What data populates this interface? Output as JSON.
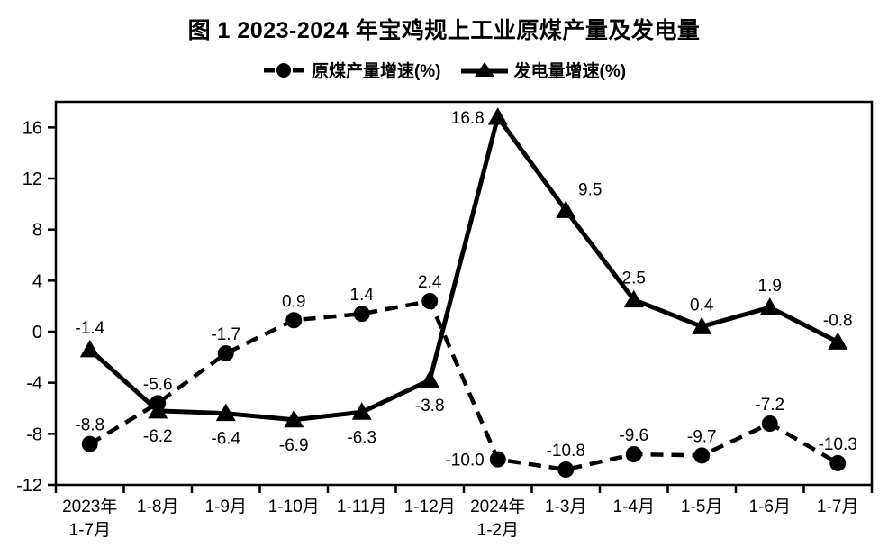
{
  "title": "图 1  2023-2024 年宝鸡规上工业原煤产量及发电量",
  "legend": {
    "items": [
      {
        "label": "原煤产量增速(%)"
      },
      {
        "label": "发电量增速(%)"
      }
    ]
  },
  "chart_data": {
    "type": "line",
    "title": "图 1  2023-2024 年宝鸡规上工业原煤产量及发电量",
    "categories": [
      "2023年\n1-7月",
      "1-8月",
      "1-9月",
      "1-10月",
      "1-11月",
      "1-12月",
      "2024年\n1-2月",
      "1-3月",
      "1-4月",
      "1-5月",
      "1-6月",
      "1-7月"
    ],
    "series": [
      {
        "name": "原煤产量增速(%)",
        "marker": "circle",
        "line_style": "dashed",
        "values": [
          -8.8,
          -5.6,
          -1.7,
          0.9,
          1.4,
          2.4,
          -10.0,
          -10.8,
          -9.6,
          -9.7,
          -7.2,
          -10.3
        ],
        "label_pos": [
          "above",
          "above",
          "above",
          "above",
          "above",
          "above",
          "left",
          "above",
          "above",
          "above",
          "above",
          "above"
        ]
      },
      {
        "name": "发电量增速(%)",
        "marker": "triangle",
        "line_style": "solid",
        "values": [
          -1.4,
          -6.2,
          -6.4,
          -6.9,
          -6.3,
          -3.8,
          16.8,
          9.5,
          2.5,
          0.4,
          1.9,
          -0.8
        ],
        "label_pos": [
          "above",
          "below",
          "below",
          "below",
          "below",
          "below",
          "left",
          "above-right",
          "above",
          "above",
          "above",
          "above"
        ]
      }
    ],
    "ylim": [
      -12,
      18
    ],
    "yticks": [
      -12,
      -8,
      -4,
      0,
      4,
      8,
      12,
      16
    ],
    "xlabel": "",
    "ylabel": "",
    "grid": false,
    "legend_position": "top",
    "series_color": "#000000"
  }
}
